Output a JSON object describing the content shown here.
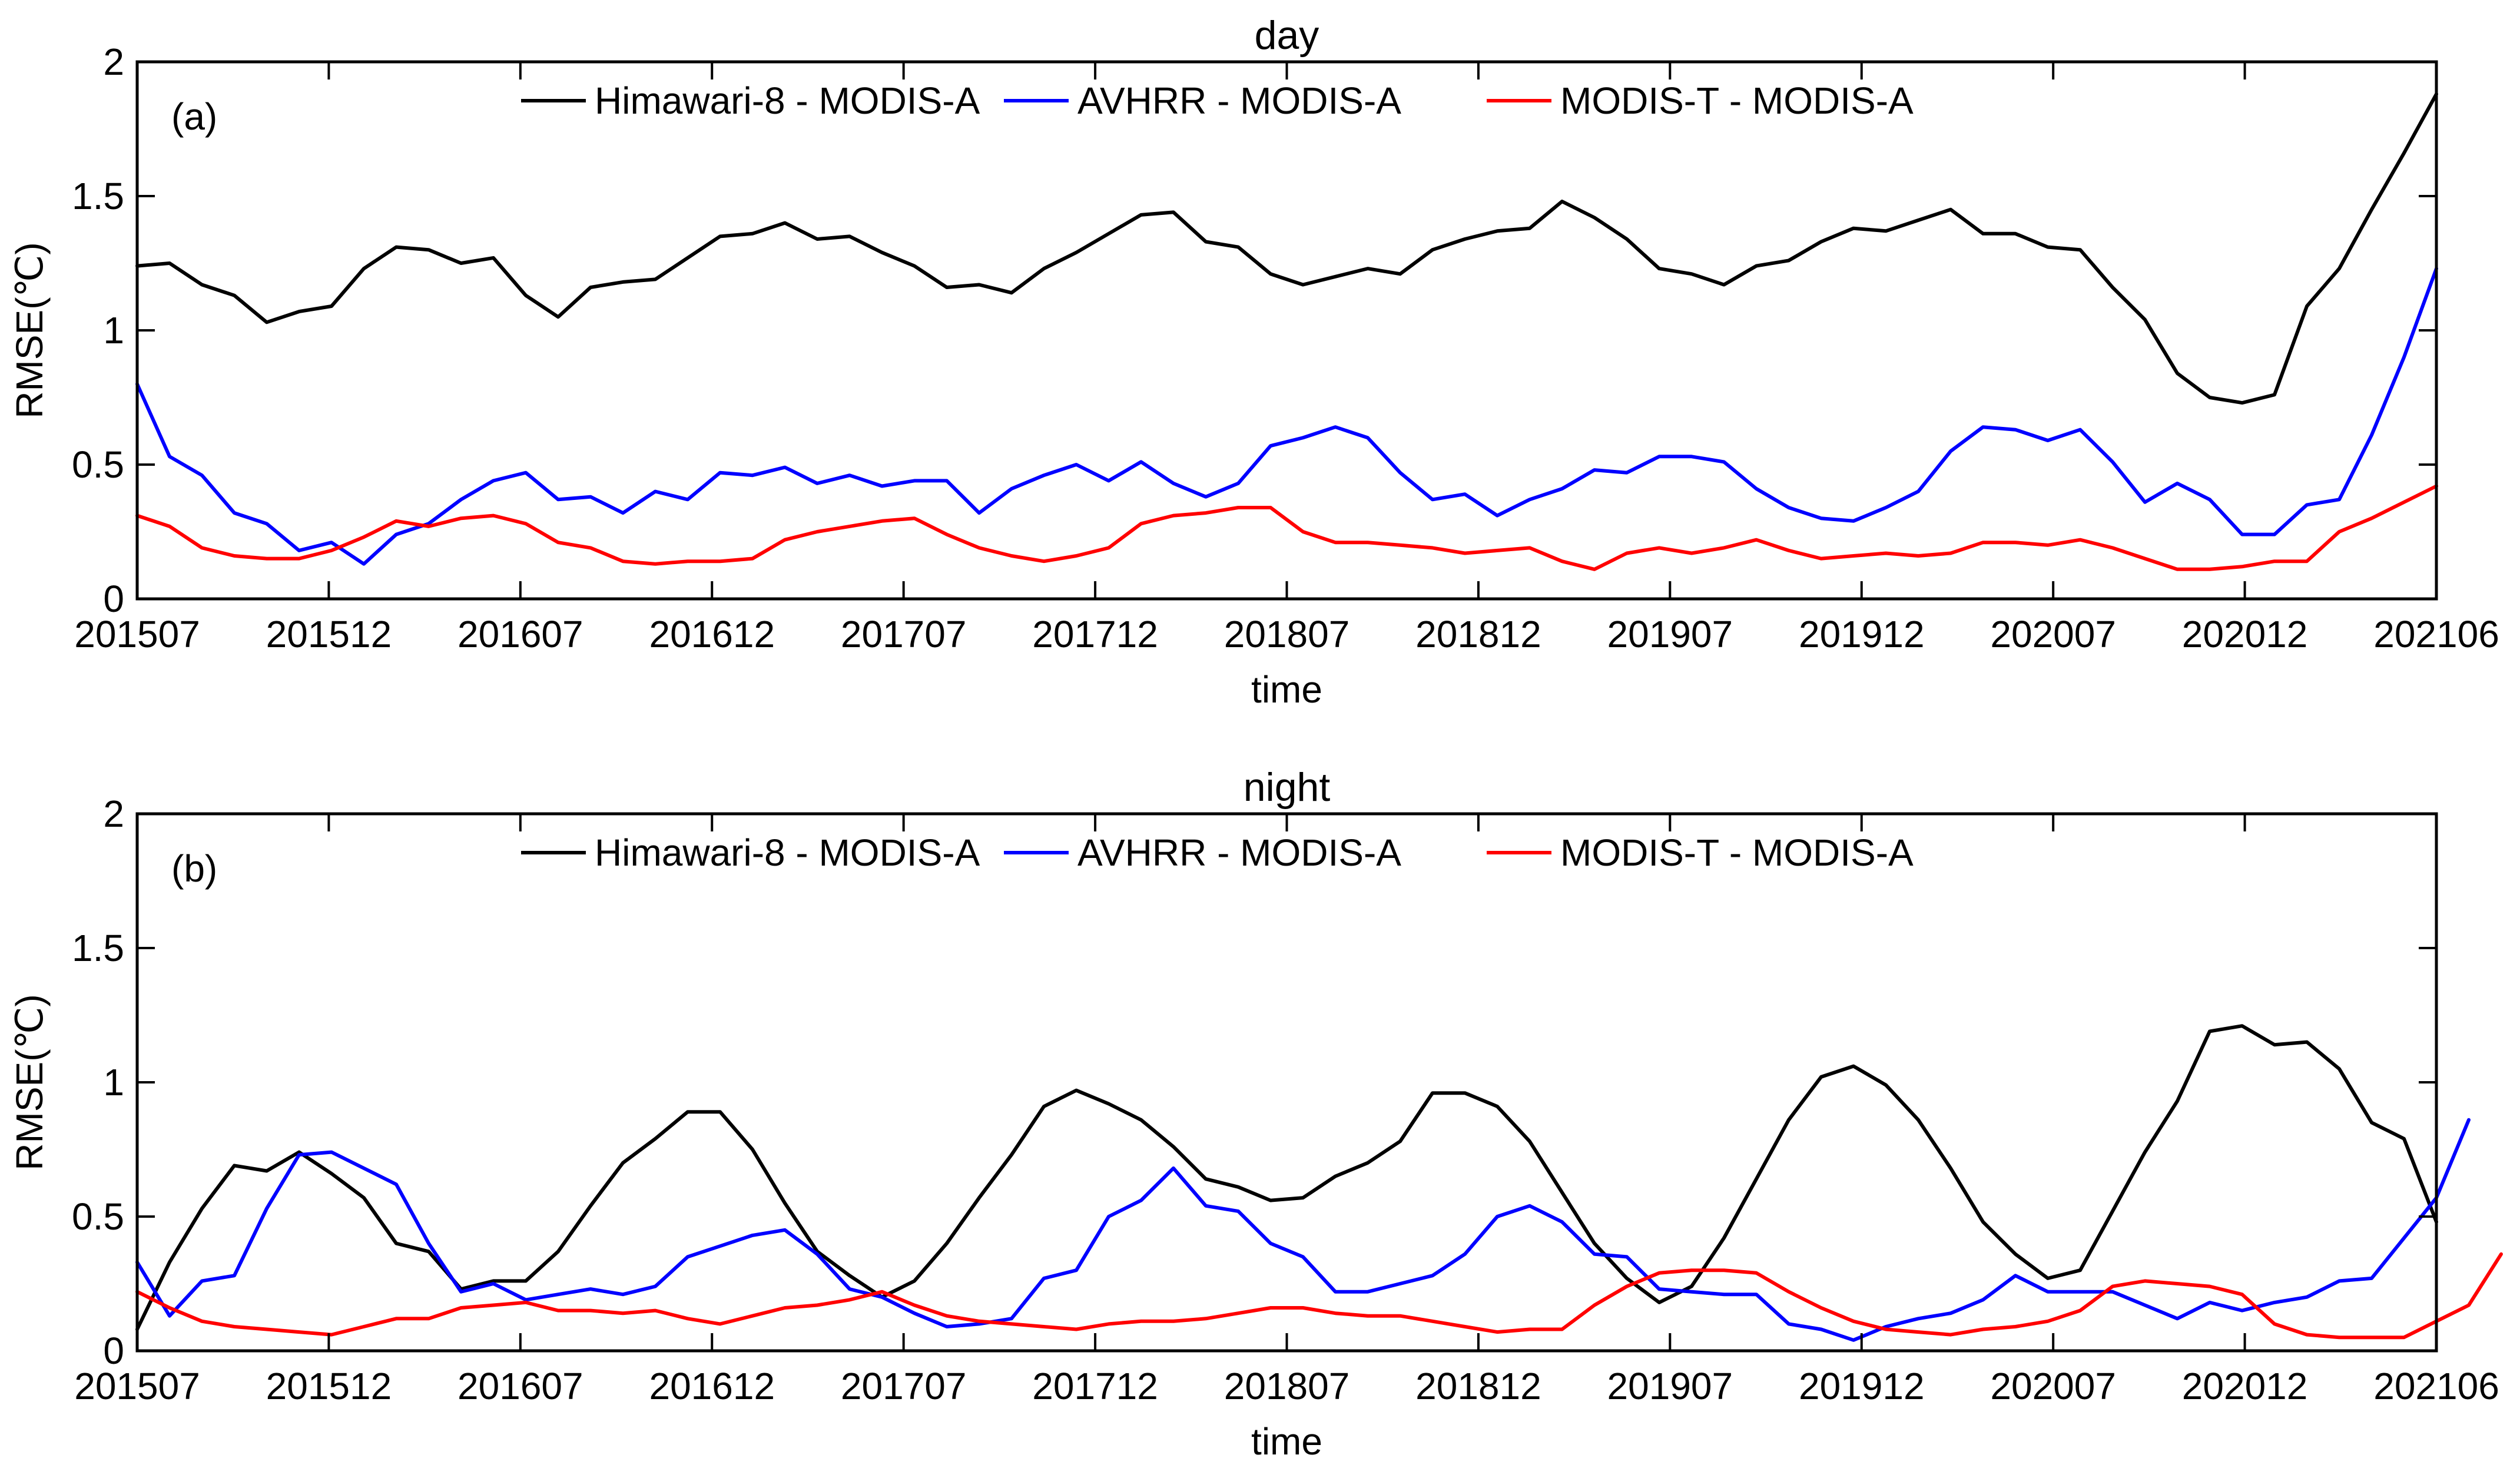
{
  "chart_data": [
    {
      "type": "line",
      "panel_label": "(a)",
      "title": "day",
      "xlabel": "time",
      "ylabel": "RMSE(℃)",
      "ylim": [
        0,
        2
      ],
      "yticks": [
        "0",
        "0.5",
        "1",
        "1.5",
        "2"
      ],
      "xticks": [
        "201507",
        "201512",
        "201607",
        "201612",
        "201707",
        "201712",
        "201807",
        "201812",
        "201907",
        "201912",
        "202007",
        "202012",
        "202106"
      ],
      "legend_location": "top",
      "series": [
        {
          "name": "Himawari-8 - MODIS-A",
          "color": "#000000",
          "values": [
            1.24,
            1.25,
            1.17,
            1.13,
            1.03,
            1.07,
            1.09,
            1.23,
            1.31,
            1.3,
            1.25,
            1.27,
            1.13,
            1.05,
            1.16,
            1.18,
            1.19,
            1.27,
            1.35,
            1.36,
            1.4,
            1.34,
            1.35,
            1.29,
            1.24,
            1.16,
            1.17,
            1.14,
            1.23,
            1.29,
            1.36,
            1.43,
            1.44,
            1.33,
            1.31,
            1.21,
            1.17,
            1.2,
            1.23,
            1.21,
            1.3,
            1.34,
            1.37,
            1.38,
            1.48,
            1.42,
            1.34,
            1.23,
            1.21,
            1.17,
            1.24,
            1.26,
            1.33,
            1.38,
            1.37,
            1.41,
            1.45,
            1.36,
            1.36,
            1.31,
            1.3,
            1.16,
            1.04,
            0.84,
            0.75,
            0.73,
            0.76,
            1.09,
            1.23,
            1.45,
            1.66,
            1.88
          ]
        },
        {
          "name": "AVHRR - MODIS-A",
          "color": "#0000ff",
          "values": [
            0.8,
            0.53,
            0.46,
            0.32,
            0.28,
            0.18,
            0.21,
            0.13,
            0.24,
            0.28,
            0.37,
            0.44,
            0.47,
            0.37,
            0.38,
            0.32,
            0.4,
            0.37,
            0.47,
            0.46,
            0.49,
            0.43,
            0.46,
            0.42,
            0.44,
            0.44,
            0.32,
            0.41,
            0.46,
            0.5,
            0.44,
            0.51,
            0.43,
            0.38,
            0.43,
            0.57,
            0.6,
            0.64,
            0.6,
            0.47,
            0.37,
            0.39,
            0.31,
            0.37,
            0.41,
            0.48,
            0.47,
            0.53,
            0.53,
            0.51,
            0.41,
            0.34,
            0.3,
            0.29,
            0.34,
            0.4,
            0.55,
            0.64,
            0.63,
            0.59,
            0.63,
            0.51,
            0.36,
            0.43,
            0.37,
            0.24,
            0.24,
            0.35,
            0.37,
            0.61,
            0.9,
            1.23
          ]
        },
        {
          "name": "MODIS-T - MODIS-A",
          "color": "#ff0000",
          "values": [
            0.31,
            0.27,
            0.19,
            0.16,
            0.15,
            0.15,
            0.18,
            0.23,
            0.29,
            0.27,
            0.3,
            0.31,
            0.28,
            0.21,
            0.19,
            0.14,
            0.13,
            0.14,
            0.14,
            0.15,
            0.22,
            0.25,
            0.27,
            0.29,
            0.3,
            0.24,
            0.19,
            0.16,
            0.14,
            0.16,
            0.19,
            0.28,
            0.31,
            0.32,
            0.34,
            0.34,
            0.25,
            0.21,
            0.21,
            0.2,
            0.19,
            0.17,
            0.18,
            0.19,
            0.14,
            0.11,
            0.17,
            0.19,
            0.17,
            0.19,
            0.22,
            0.18,
            0.15,
            0.16,
            0.17,
            0.16,
            0.17,
            0.21,
            0.21,
            0.2,
            0.22,
            0.19,
            0.15,
            0.11,
            0.11,
            0.12,
            0.14,
            0.14,
            0.25,
            0.3,
            0.36,
            0.42
          ]
        }
      ]
    },
    {
      "type": "line",
      "panel_label": "(b)",
      "title": "night",
      "xlabel": "time",
      "ylabel": "RMSE(℃)",
      "ylim": [
        0,
        2
      ],
      "yticks": [
        "0",
        "0.5",
        "1",
        "1.5",
        "2"
      ],
      "xticks": [
        "201507",
        "201512",
        "201607",
        "201612",
        "201707",
        "201712",
        "201807",
        "201812",
        "201907",
        "201912",
        "202007",
        "202012",
        "202106"
      ],
      "legend_location": "top",
      "series": [
        {
          "name": "Himawari-8 - MODIS-A",
          "color": "#000000",
          "values": [
            0.08,
            0.33,
            0.53,
            0.69,
            0.67,
            0.74,
            0.66,
            0.57,
            0.4,
            0.37,
            0.23,
            0.26,
            0.26,
            0.37,
            0.54,
            0.7,
            0.79,
            0.89,
            0.89,
            0.75,
            0.55,
            0.37,
            0.28,
            0.2,
            0.26,
            0.4,
            0.57,
            0.73,
            0.91,
            0.97,
            0.92,
            0.86,
            0.76,
            0.64,
            0.61,
            0.56,
            0.57,
            0.65,
            0.7,
            0.78,
            0.96,
            0.96,
            0.91,
            0.78,
            0.59,
            0.4,
            0.27,
            0.18,
            0.24,
            0.42,
            0.64,
            0.86,
            1.02,
            1.06,
            0.99,
            0.86,
            0.68,
            0.48,
            0.36,
            0.27,
            0.3,
            0.52,
            0.74,
            0.93,
            1.19,
            1.21,
            1.14,
            1.15,
            1.05,
            0.85,
            0.79,
            0.48
          ]
        },
        {
          "name": "AVHRR - MODIS-A",
          "color": "#0000ff",
          "values": [
            0.33,
            0.13,
            0.26,
            0.28,
            0.53,
            0.73,
            0.74,
            0.68,
            0.62,
            0.4,
            0.22,
            0.25,
            0.19,
            0.21,
            0.23,
            0.21,
            0.24,
            0.35,
            0.39,
            0.43,
            0.45,
            0.36,
            0.23,
            0.2,
            0.14,
            0.09,
            0.1,
            0.12,
            0.27,
            0.3,
            0.5,
            0.56,
            0.68,
            0.54,
            0.52,
            0.4,
            0.35,
            0.22,
            0.22,
            0.25,
            0.28,
            0.36,
            0.5,
            0.54,
            0.48,
            0.36,
            0.35,
            0.23,
            0.22,
            0.21,
            0.21,
            0.1,
            0.08,
            0.04,
            0.09,
            0.12,
            0.14,
            0.19,
            0.28,
            0.22,
            0.22,
            0.22,
            0.17,
            0.12,
            0.18,
            0.15,
            0.18,
            0.2,
            0.26,
            0.27,
            0.42,
            0.57,
            0.86
          ]
        },
        {
          "name": "MODIS-T - MODIS-A",
          "color": "#ff0000",
          "values": [
            0.22,
            0.16,
            0.11,
            0.09,
            0.08,
            0.07,
            0.06,
            0.09,
            0.12,
            0.12,
            0.16,
            0.17,
            0.18,
            0.15,
            0.15,
            0.14,
            0.15,
            0.12,
            0.1,
            0.13,
            0.16,
            0.17,
            0.19,
            0.22,
            0.17,
            0.13,
            0.11,
            0.1,
            0.09,
            0.08,
            0.1,
            0.11,
            0.11,
            0.12,
            0.14,
            0.16,
            0.16,
            0.14,
            0.13,
            0.13,
            0.11,
            0.09,
            0.07,
            0.08,
            0.08,
            0.17,
            0.24,
            0.29,
            0.3,
            0.3,
            0.29,
            0.22,
            0.16,
            0.11,
            0.08,
            0.07,
            0.06,
            0.08,
            0.09,
            0.11,
            0.15,
            0.24,
            0.26,
            0.25,
            0.24,
            0.21,
            0.1,
            0.06,
            0.05,
            0.05,
            0.05,
            0.11,
            0.17,
            0.36
          ]
        }
      ]
    }
  ]
}
